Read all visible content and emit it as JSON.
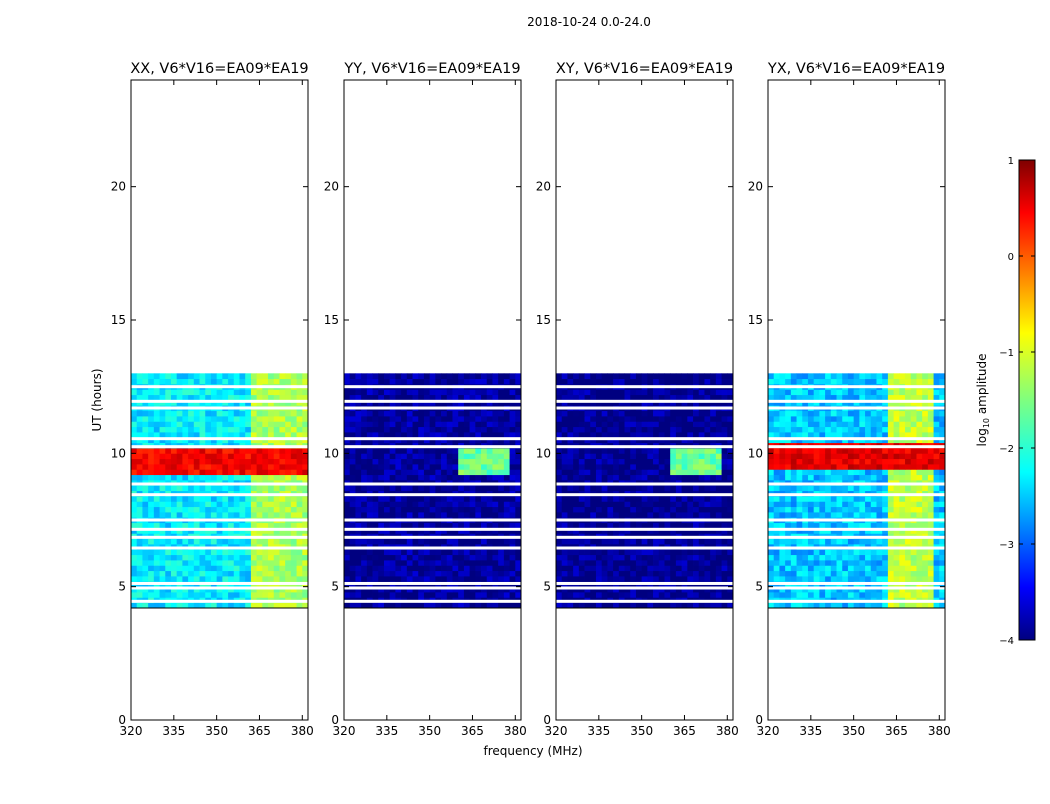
{
  "figure": {
    "title": "2018-10-24 0.0-24.0"
  },
  "chart_data": [
    {
      "type": "heatmap",
      "title": "XX, V6*V16=EA09*EA19",
      "xlabel": "",
      "ylabel": "UT (hours)",
      "xlim": [
        320,
        382
      ],
      "ylim": [
        0,
        24
      ],
      "xticks": [
        320,
        335,
        350,
        365,
        380
      ],
      "yticks": [
        0,
        5,
        10,
        15,
        20
      ],
      "data_time_range": [
        4.2,
        13.0
      ],
      "band_level": -2.2,
      "band_level_hot": 0.4,
      "hot_time_range": [
        9.2,
        10.2
      ],
      "flagged_hours": [
        4.45,
        4.95,
        5.12,
        6.45,
        6.85,
        7.15,
        7.5,
        8.45,
        8.85,
        10.25,
        10.55,
        11.7,
        11.95,
        12.5
      ],
      "bright_channels": [
        {
          "range": [
            362,
            382
          ],
          "level": -1.3
        }
      ]
    },
    {
      "type": "heatmap",
      "title": "YY, V6*V16=EA09*EA19",
      "xlabel": "frequency (MHz)",
      "ylabel": "",
      "xlim": [
        320,
        382
      ],
      "ylim": [
        0,
        24
      ],
      "xticks": [
        320,
        335,
        350,
        365,
        380
      ],
      "yticks": [
        0,
        5,
        10,
        15,
        20
      ],
      "data_time_range": [
        4.2,
        13.0
      ],
      "band_level": -3.9,
      "flagged_hours": [
        4.45,
        4.95,
        5.12,
        6.45,
        6.85,
        7.15,
        7.5,
        8.45,
        8.85,
        10.25,
        10.55,
        11.7,
        11.95,
        12.5
      ],
      "bright_channels": [
        {
          "range": [
            361,
            378
          ],
          "level": -1.6,
          "time_range": [
            9.2,
            10.1
          ]
        }
      ]
    },
    {
      "type": "heatmap",
      "title": "XY, V6*V16=EA09*EA19",
      "xlabel": "",
      "ylabel": "",
      "xlim": [
        320,
        382
      ],
      "ylim": [
        0,
        24
      ],
      "xticks": [
        320,
        335,
        350,
        365,
        380
      ],
      "yticks": [
        0,
        5,
        10,
        15,
        20
      ],
      "data_time_range": [
        4.2,
        13.0
      ],
      "band_level": -3.95,
      "flagged_hours": [
        4.45,
        4.95,
        5.12,
        6.45,
        6.85,
        7.15,
        7.5,
        8.45,
        8.85,
        10.25,
        10.55,
        11.7,
        11.95,
        12.5
      ],
      "bright_channels": [
        {
          "range": [
            361,
            378
          ],
          "level": -1.6,
          "time_range": [
            9.2,
            10.1
          ]
        }
      ]
    },
    {
      "type": "heatmap",
      "title": "YX, V6*V16=EA09*EA19",
      "xlabel": "",
      "ylabel": "",
      "xlim": [
        320,
        382
      ],
      "ylim": [
        0,
        24
      ],
      "xticks": [
        320,
        335,
        350,
        365,
        380
      ],
      "yticks": [
        0,
        5,
        10,
        15,
        20
      ],
      "data_time_range": [
        4.2,
        13.0
      ],
      "band_level": -2.4,
      "band_level_hot": 0.5,
      "hot_time_range": [
        9.3,
        10.3
      ],
      "flagged_hours": [
        4.45,
        4.95,
        5.12,
        6.45,
        6.85,
        7.15,
        7.5,
        8.45,
        8.85,
        10.25,
        10.55,
        11.7,
        11.95,
        12.5
      ],
      "bright_channels": [
        {
          "range": [
            362,
            377
          ],
          "level": -1.2
        }
      ]
    }
  ],
  "colorbar": {
    "label": "log10 amplitude",
    "label_main": "log",
    "label_sub": "10",
    "label_rest": " amplitude",
    "range": [
      -4,
      1
    ],
    "ticks": [
      1,
      0,
      -1,
      -2,
      -3,
      -4
    ],
    "tick_labels": [
      "1",
      "0",
      "−1",
      "−2",
      "−3",
      "−4"
    ],
    "colormap": "jet"
  }
}
